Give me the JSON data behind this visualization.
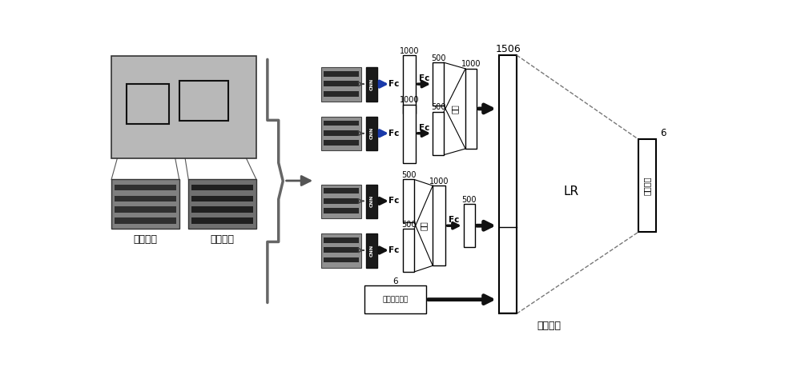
{
  "bg_color": "#ffffff",
  "dark_block_color": "#1a1a1a",
  "gray_arrow_color": "#555555",
  "blue_arrow_color": "#1a3aaa",
  "black_arrow_color": "#111111",
  "bracket_color": "#666666",
  "dashed_color": "#666666",
  "face_bg": "#b0b0b0",
  "eye_bg": "#909090",
  "eye_dark": "#282828",
  "label_right_eye": "右眼图像",
  "label_left_eye": "左眼图像",
  "label_final_feat": "最终特征",
  "label_output_box": "视线方向",
  "label_LR": "LR",
  "label_cnn": "CNN",
  "label_connect": "连接",
  "label_head": "头部角度向量",
  "n1000": "1000",
  "n500": "500",
  "n1506": "1506",
  "n6a": "6",
  "n6b": "6",
  "fc": "Fc"
}
